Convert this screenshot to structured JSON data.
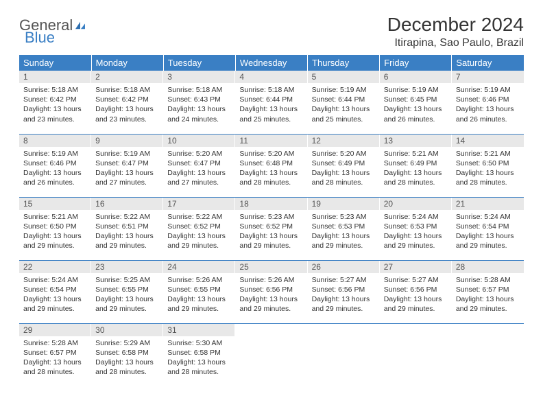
{
  "logo": {
    "general": "General",
    "blue": "Blue"
  },
  "title": "December 2024",
  "location": "Itirapina, Sao Paulo, Brazil",
  "weekdays": [
    "Sunday",
    "Monday",
    "Tuesday",
    "Wednesday",
    "Thursday",
    "Friday",
    "Saturday"
  ],
  "colors": {
    "header_bg": "#3a7fc4",
    "header_text": "#ffffff",
    "daynum_bg": "#e8e8e8",
    "row_border": "#3a7fc4",
    "text": "#333333",
    "logo_blue": "#3a7fc4",
    "logo_gray": "#555555"
  },
  "days": [
    {
      "n": "1",
      "sunrise": "5:18 AM",
      "sunset": "6:42 PM",
      "daylight": "13 hours and 23 minutes."
    },
    {
      "n": "2",
      "sunrise": "5:18 AM",
      "sunset": "6:42 PM",
      "daylight": "13 hours and 23 minutes."
    },
    {
      "n": "3",
      "sunrise": "5:18 AM",
      "sunset": "6:43 PM",
      "daylight": "13 hours and 24 minutes."
    },
    {
      "n": "4",
      "sunrise": "5:18 AM",
      "sunset": "6:44 PM",
      "daylight": "13 hours and 25 minutes."
    },
    {
      "n": "5",
      "sunrise": "5:19 AM",
      "sunset": "6:44 PM",
      "daylight": "13 hours and 25 minutes."
    },
    {
      "n": "6",
      "sunrise": "5:19 AM",
      "sunset": "6:45 PM",
      "daylight": "13 hours and 26 minutes."
    },
    {
      "n": "7",
      "sunrise": "5:19 AM",
      "sunset": "6:46 PM",
      "daylight": "13 hours and 26 minutes."
    },
    {
      "n": "8",
      "sunrise": "5:19 AM",
      "sunset": "6:46 PM",
      "daylight": "13 hours and 26 minutes."
    },
    {
      "n": "9",
      "sunrise": "5:19 AM",
      "sunset": "6:47 PM",
      "daylight": "13 hours and 27 minutes."
    },
    {
      "n": "10",
      "sunrise": "5:20 AM",
      "sunset": "6:47 PM",
      "daylight": "13 hours and 27 minutes."
    },
    {
      "n": "11",
      "sunrise": "5:20 AM",
      "sunset": "6:48 PM",
      "daylight": "13 hours and 28 minutes."
    },
    {
      "n": "12",
      "sunrise": "5:20 AM",
      "sunset": "6:49 PM",
      "daylight": "13 hours and 28 minutes."
    },
    {
      "n": "13",
      "sunrise": "5:21 AM",
      "sunset": "6:49 PM",
      "daylight": "13 hours and 28 minutes."
    },
    {
      "n": "14",
      "sunrise": "5:21 AM",
      "sunset": "6:50 PM",
      "daylight": "13 hours and 28 minutes."
    },
    {
      "n": "15",
      "sunrise": "5:21 AM",
      "sunset": "6:50 PM",
      "daylight": "13 hours and 29 minutes."
    },
    {
      "n": "16",
      "sunrise": "5:22 AM",
      "sunset": "6:51 PM",
      "daylight": "13 hours and 29 minutes."
    },
    {
      "n": "17",
      "sunrise": "5:22 AM",
      "sunset": "6:52 PM",
      "daylight": "13 hours and 29 minutes."
    },
    {
      "n": "18",
      "sunrise": "5:23 AM",
      "sunset": "6:52 PM",
      "daylight": "13 hours and 29 minutes."
    },
    {
      "n": "19",
      "sunrise": "5:23 AM",
      "sunset": "6:53 PM",
      "daylight": "13 hours and 29 minutes."
    },
    {
      "n": "20",
      "sunrise": "5:24 AM",
      "sunset": "6:53 PM",
      "daylight": "13 hours and 29 minutes."
    },
    {
      "n": "21",
      "sunrise": "5:24 AM",
      "sunset": "6:54 PM",
      "daylight": "13 hours and 29 minutes."
    },
    {
      "n": "22",
      "sunrise": "5:24 AM",
      "sunset": "6:54 PM",
      "daylight": "13 hours and 29 minutes."
    },
    {
      "n": "23",
      "sunrise": "5:25 AM",
      "sunset": "6:55 PM",
      "daylight": "13 hours and 29 minutes."
    },
    {
      "n": "24",
      "sunrise": "5:26 AM",
      "sunset": "6:55 PM",
      "daylight": "13 hours and 29 minutes."
    },
    {
      "n": "25",
      "sunrise": "5:26 AM",
      "sunset": "6:56 PM",
      "daylight": "13 hours and 29 minutes."
    },
    {
      "n": "26",
      "sunrise": "5:27 AM",
      "sunset": "6:56 PM",
      "daylight": "13 hours and 29 minutes."
    },
    {
      "n": "27",
      "sunrise": "5:27 AM",
      "sunset": "6:56 PM",
      "daylight": "13 hours and 29 minutes."
    },
    {
      "n": "28",
      "sunrise": "5:28 AM",
      "sunset": "6:57 PM",
      "daylight": "13 hours and 29 minutes."
    },
    {
      "n": "29",
      "sunrise": "5:28 AM",
      "sunset": "6:57 PM",
      "daylight": "13 hours and 28 minutes."
    },
    {
      "n": "30",
      "sunrise": "5:29 AM",
      "sunset": "6:58 PM",
      "daylight": "13 hours and 28 minutes."
    },
    {
      "n": "31",
      "sunrise": "5:30 AM",
      "sunset": "6:58 PM",
      "daylight": "13 hours and 28 minutes."
    }
  ],
  "labels": {
    "sunrise": "Sunrise:",
    "sunset": "Sunset:",
    "daylight": "Daylight:"
  },
  "layout": {
    "start_weekday": 0,
    "columns": 7,
    "rows": 5
  }
}
